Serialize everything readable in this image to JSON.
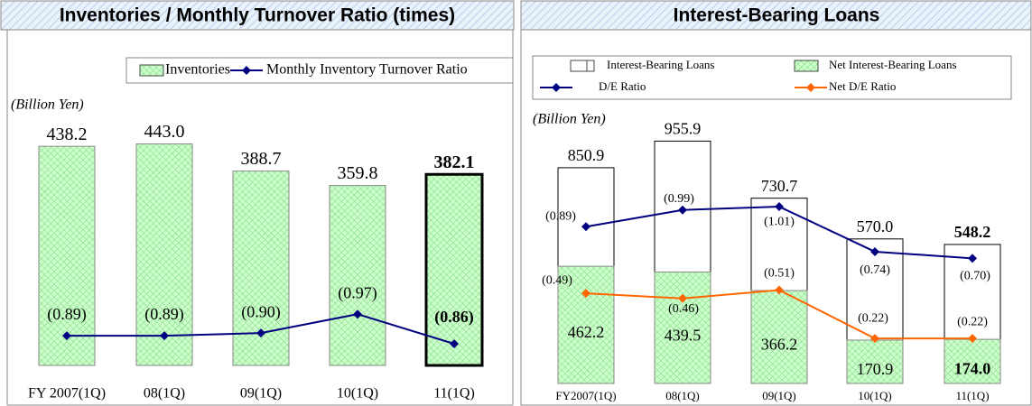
{
  "chart_data": [
    {
      "type": "bar",
      "title": "Inventories / Monthly Turnover Ratio (times)",
      "unit_label": "(Billion Yen)",
      "categories": [
        "FY 2007(1Q)",
        "08(1Q)",
        "09(1Q)",
        "10(1Q)",
        "11(1Q)"
      ],
      "series": [
        {
          "name": "Inventories",
          "color": "#ccffcc",
          "values": [
            438.2,
            443.0,
            388.7,
            359.8,
            382.1
          ],
          "value_labels": [
            "438.2",
            "443.0",
            "388.7",
            "359.8",
            "382.1"
          ]
        },
        {
          "name": "Monthly Inventory Turnover Ratio",
          "color": "#000080",
          "axis": "y2",
          "values": [
            0.89,
            0.89,
            0.9,
            0.97,
            0.86
          ],
          "value_labels": [
            "(0.89)",
            "(0.89)",
            "(0.90)",
            "(0.97)",
            "(0.86)"
          ]
        }
      ],
      "ylim": [
        0,
        480
      ],
      "y2lim": [
        0.78,
        1.67
      ],
      "highlight_index": 4
    },
    {
      "type": "bar",
      "title": "Interest-Bearing Loans",
      "unit_label": "(Billion Yen)",
      "categories": [
        "FY2007(1Q)",
        "08(1Q)",
        "09(1Q)",
        "10(1Q)",
        "11(1Q)"
      ],
      "series": [
        {
          "name": "Interest-Bearing Loans",
          "color": "#ffffff",
          "values": [
            850.9,
            955.9,
            730.7,
            570.0,
            548.2
          ],
          "value_labels": [
            "850.9",
            "955.9",
            "730.7",
            "570.0",
            "548.2"
          ]
        },
        {
          "name": "Net Interest-Bearing Loans",
          "color": "#ccffcc",
          "values": [
            462.2,
            439.5,
            366.2,
            170.9,
            174.0
          ],
          "value_labels": [
            "462.2",
            "439.5",
            "366.2",
            "170.9",
            "174.0"
          ]
        },
        {
          "name": "D/E Ratio",
          "color": "#000080",
          "axis": "y2",
          "values": [
            0.89,
            0.99,
            1.01,
            0.74,
            0.7
          ],
          "value_labels": [
            "(0.89)",
            "(0.99)",
            "(1.01)",
            "(0.74)",
            "(0.70)"
          ]
        },
        {
          "name": "Net D/E Ratio",
          "color": "#ff6600",
          "axis": "y2",
          "values": [
            0.49,
            0.46,
            0.51,
            0.22,
            0.22
          ],
          "value_labels": [
            "(0.49)",
            "(0.46)",
            "(0.51)",
            "(0.22)",
            "(0.22)"
          ]
        }
      ],
      "ylim": [
        0,
        1000
      ],
      "y2lim": [
        -0.05,
        1.47
      ],
      "highlight_index": 4
    }
  ]
}
